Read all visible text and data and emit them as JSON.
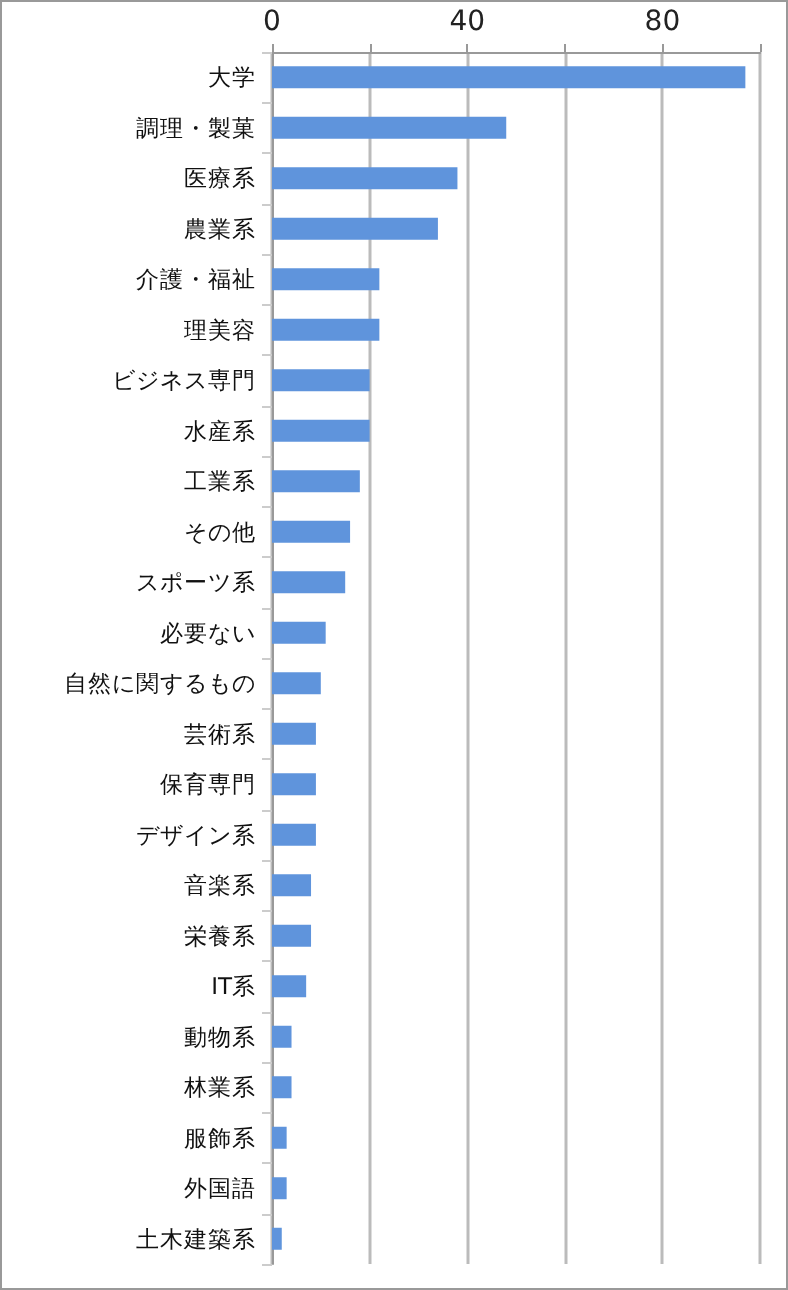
{
  "chart_data": {
    "type": "bar",
    "orientation": "horizontal",
    "categories": [
      "大学",
      "調理・製菓",
      "医療系",
      "農業系",
      "介護・福祉",
      "理美容",
      "ビジネス専門",
      "水産系",
      "工業系",
      "その他",
      "スポーツ系",
      "必要ない",
      "自然に関するもの",
      "芸術系",
      "保育専門",
      "デザイン系",
      "音楽系",
      "栄養系",
      "IT系",
      "動物系",
      "林業系",
      "服飾系",
      "外国語",
      "土木建築系"
    ],
    "values": [
      97,
      48,
      38,
      34,
      22,
      22,
      20,
      20,
      18,
      16,
      15,
      11,
      10,
      9,
      9,
      9,
      8,
      8,
      7,
      4,
      4,
      3,
      3,
      2
    ],
    "color": "#5f94dc",
    "xlim": [
      0,
      100
    ],
    "xticks": [
      0,
      {
        "value": 20,
        "label": null
      },
      40,
      {
        "value": 60,
        "label": null
      },
      80,
      {
        "value": 100,
        "label": null
      }
    ],
    "grid": "x"
  }
}
